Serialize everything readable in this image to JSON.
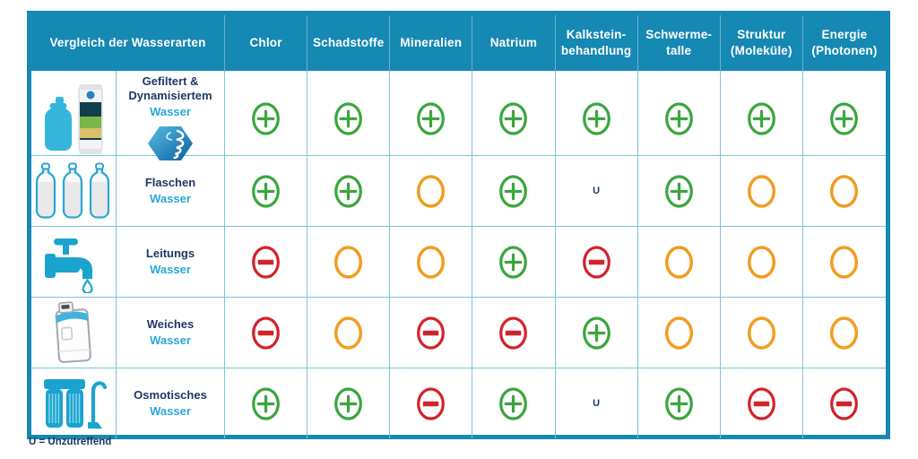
{
  "colors": {
    "teal": "#1688b4",
    "grid_line": "#79c6db",
    "green": "#3aa63c",
    "orange": "#f09d20",
    "red": "#d2232a",
    "navy": "#1f3864",
    "light_blue": "#29a7d7"
  },
  "table": {
    "u_label": "U",
    "header": {
      "title": "Vergleich der Wasserarten",
      "columns": [
        "Chlor",
        "Schadstoffe",
        "Mineralien",
        "Natrium",
        "Kalkstein-\nbehandlung",
        "Schwerme-\ntalle",
        "Struktur\n(Moleküle)",
        "Energie\n(Photonen)"
      ]
    },
    "rows": [
      {
        "icon": "filter-cartridge-icon",
        "label_main": "Gefiltert &\nDynamisiertem",
        "label_sub": "Wasser",
        "has_logo": true,
        "values": [
          "plus",
          "plus",
          "plus",
          "plus",
          "plus",
          "plus",
          "plus",
          "plus"
        ]
      },
      {
        "icon": "water-bottles-icon",
        "label_main": "Flaschen",
        "label_sub": "Wasser",
        "has_logo": false,
        "values": [
          "plus",
          "plus",
          "circle",
          "plus",
          "u",
          "plus",
          "circle",
          "circle"
        ]
      },
      {
        "icon": "tap-icon",
        "label_main": "Leitungs",
        "label_sub": "Wasser",
        "has_logo": false,
        "values": [
          "minus",
          "circle",
          "circle",
          "plus",
          "minus",
          "circle",
          "circle",
          "circle"
        ]
      },
      {
        "icon": "water-softener-icon",
        "label_main": "Weiches",
        "label_sub": "Wasser",
        "has_logo": false,
        "values": [
          "minus",
          "circle",
          "minus",
          "minus",
          "plus",
          "circle",
          "circle",
          "circle"
        ]
      },
      {
        "icon": "osmosis-filter-icon",
        "label_main": "Osmotisches",
        "label_sub": "Wasser",
        "has_logo": false,
        "values": [
          "plus",
          "plus",
          "minus",
          "plus",
          "u",
          "plus",
          "minus",
          "minus"
        ]
      }
    ]
  },
  "footnote": "U = Unzutreffend",
  "chart_data": {
    "type": "table",
    "title": "Vergleich der Wasserarten",
    "columns": [
      "Chlor",
      "Schadstoffe",
      "Mineralien",
      "Natrium",
      "Kalksteinbehandlung",
      "Schwermetalle",
      "Struktur (Moleküle)",
      "Energie (Photonen)"
    ],
    "rows": [
      "Gefiltert & Dynamisiertem Wasser",
      "Flaschen Wasser",
      "Leitungs Wasser",
      "Weiches Wasser",
      "Osmotisches Wasser"
    ],
    "values": [
      [
        "plus",
        "plus",
        "plus",
        "plus",
        "plus",
        "plus",
        "plus",
        "plus"
      ],
      [
        "plus",
        "plus",
        "circle",
        "plus",
        "u",
        "plus",
        "circle",
        "circle"
      ],
      [
        "minus",
        "circle",
        "circle",
        "plus",
        "minus",
        "circle",
        "circle",
        "circle"
      ],
      [
        "minus",
        "circle",
        "minus",
        "minus",
        "plus",
        "circle",
        "circle",
        "circle"
      ],
      [
        "plus",
        "plus",
        "minus",
        "plus",
        "u",
        "plus",
        "minus",
        "minus"
      ]
    ],
    "legend": {
      "plus": "green plus circle (positive)",
      "minus": "red minus circle (negative)",
      "circle": "orange empty circle (neutral)",
      "u": "U = Unzutreffend"
    }
  }
}
